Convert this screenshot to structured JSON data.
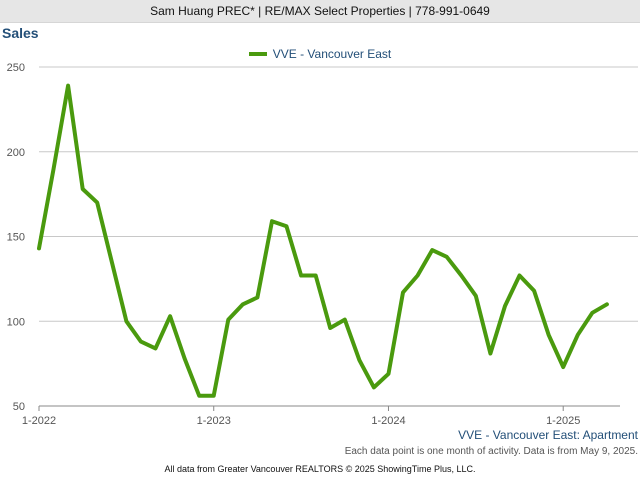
{
  "header": {
    "text": "Sam Huang PREC* | RE/MAX Select Properties | 778-991-0649"
  },
  "chart_caption": "VVE - Vancouver East: Apartment",
  "note": "Each data point is one month of activity. Data is from May 9, 2025.",
  "footer": "All data from Greater Vancouver REALTORS © 2025 ShowingTime Plus, LLC.",
  "colors": {
    "series": "#4a9a0e",
    "title": "#234f78",
    "grid": "#c8c8c8",
    "header_bg": "#e6e6e6"
  },
  "chart_data": {
    "type": "line",
    "title": "Sales",
    "xlabel": "",
    "ylabel": "",
    "ylim": [
      50,
      250
    ],
    "yticks": [
      50,
      100,
      150,
      200,
      250
    ],
    "xlim": [
      "2022-01",
      "2025-04"
    ],
    "xticks": [
      {
        "label": "1-2022",
        "x": "2022-01"
      },
      {
        "label": "1-2023",
        "x": "2023-01"
      },
      {
        "label": "1-2024",
        "x": "2024-01"
      },
      {
        "label": "1-2025",
        "x": "2025-01"
      }
    ],
    "grid": true,
    "legend_position": "top-center",
    "series": [
      {
        "name": "VVE - Vancouver East",
        "x": [
          "2022-01",
          "2022-02",
          "2022-03",
          "2022-04",
          "2022-05",
          "2022-06",
          "2022-07",
          "2022-08",
          "2022-09",
          "2022-10",
          "2022-11",
          "2022-12",
          "2023-01",
          "2023-02",
          "2023-03",
          "2023-04",
          "2023-05",
          "2023-06",
          "2023-07",
          "2023-08",
          "2023-09",
          "2023-10",
          "2023-11",
          "2023-12",
          "2024-01",
          "2024-02",
          "2024-03",
          "2024-04",
          "2024-05",
          "2024-06",
          "2024-07",
          "2024-08",
          "2024-09",
          "2024-10",
          "2024-11",
          "2024-12",
          "2025-01",
          "2025-02",
          "2025-03",
          "2025-04"
        ],
        "values": [
          143,
          190,
          239,
          178,
          170,
          135,
          100,
          88,
          84,
          103,
          78,
          56,
          56,
          101,
          110,
          114,
          159,
          156,
          127,
          127,
          96,
          101,
          77,
          61,
          69,
          117,
          127,
          142,
          138,
          127,
          115,
          81,
          109,
          127,
          118,
          92,
          73,
          92,
          105,
          110
        ]
      }
    ]
  }
}
